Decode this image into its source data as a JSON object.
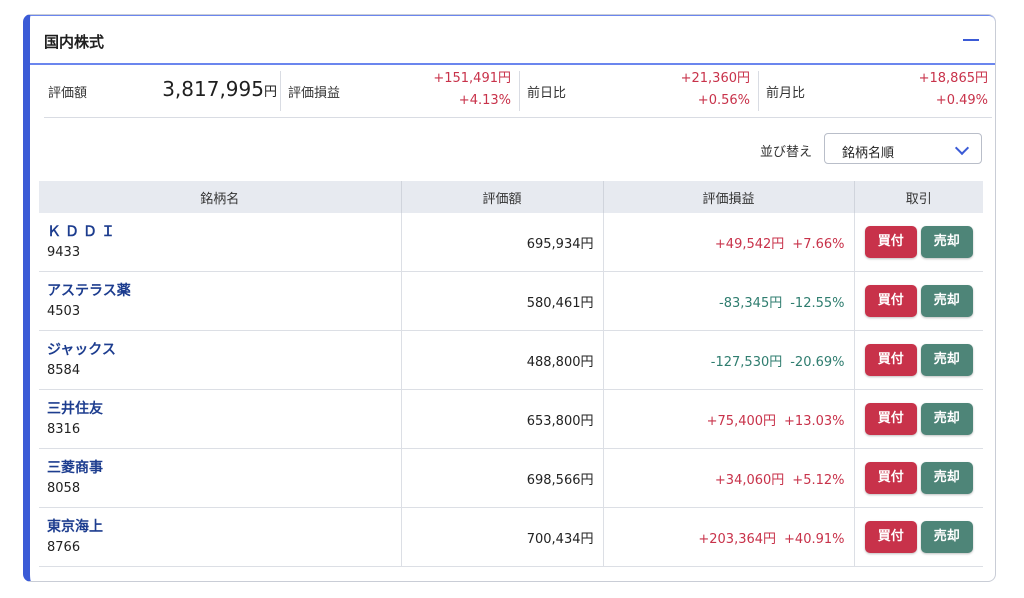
{
  "panel": {
    "title": "国内株式"
  },
  "summary": {
    "valuation_label": "評価額",
    "valuation_value": "3,817,995",
    "valuation_unit": "円",
    "pl_label": "評価損益",
    "pl_amount": "+151,491円",
    "pl_percent": "+4.13%",
    "day_label": "前日比",
    "day_amount": "+21,360円",
    "day_percent": "+0.56%",
    "month_label": "前月比",
    "month_amount": "+18,865円",
    "month_percent": "+0.49%"
  },
  "sort": {
    "label": "並び替え",
    "value": "銘柄名順"
  },
  "table": {
    "headers": [
      "銘柄名",
      "評価額",
      "評価損益",
      "取引"
    ],
    "buy_label": "買付",
    "sell_label": "売却",
    "rows": [
      {
        "name": "ＫＤＤＩ",
        "code": "9433",
        "value": "695,934円",
        "pl_amount": "+49,542円",
        "pl_percent": "+7.66%",
        "sign": "pos"
      },
      {
        "name": "アステラス薬",
        "code": "4503",
        "value": "580,461円",
        "pl_amount": "-83,345円",
        "pl_percent": "-12.55%",
        "sign": "neg"
      },
      {
        "name": "ジャックス",
        "code": "8584",
        "value": "488,800円",
        "pl_amount": "-127,530円",
        "pl_percent": "-20.69%",
        "sign": "neg"
      },
      {
        "name": "三井住友",
        "code": "8316",
        "value": "653,800円",
        "pl_amount": "+75,400円",
        "pl_percent": "+13.03%",
        "sign": "pos"
      },
      {
        "name": "三菱商事",
        "code": "8058",
        "value": "698,566円",
        "pl_amount": "+34,060円",
        "pl_percent": "+5.12%",
        "sign": "pos"
      },
      {
        "name": "東京海上",
        "code": "8766",
        "value": "700,434円",
        "pl_amount": "+203,364円",
        "pl_percent": "+40.91%",
        "sign": "pos"
      }
    ]
  },
  "colors": {
    "accent": "#3b5bd6",
    "gain": "#c8324a",
    "loss": "#2f7d6f",
    "buy": "#c8324a",
    "sell": "#4e8578",
    "stock_name": "#1d3d8f"
  },
  "icons": {
    "collapse": "minus-icon",
    "sort_dropdown": "chevron-down-icon"
  }
}
